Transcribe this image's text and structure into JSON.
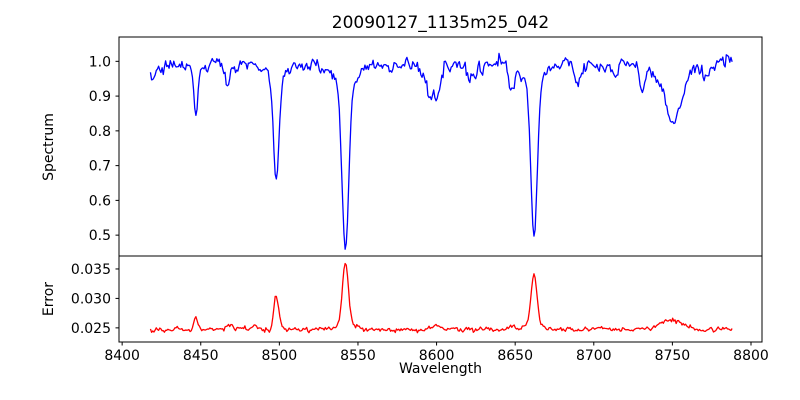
{
  "figure": {
    "title": "20090127_1135m25_042",
    "xlabel": "Wavelength",
    "background_color": "#ffffff",
    "axes_color": "#000000"
  },
  "chart_data": [
    {
      "type": "line",
      "name": "spectrum",
      "ylabel": "Spectrum",
      "color": "#0000ff",
      "legend": "none",
      "grid": false,
      "xlim": [
        8398,
        8807
      ],
      "ylim": [
        0.44,
        1.07
      ],
      "xticks": [
        8400,
        8450,
        8500,
        8550,
        8600,
        8650,
        8700,
        8750,
        8800
      ],
      "xtick_labels": [
        "8400",
        "8450",
        "8500",
        "8550",
        "8600",
        "8650",
        "8700",
        "8750",
        "8800"
      ],
      "xticks_visible": false,
      "yticks": [
        0.5,
        0.6,
        0.7,
        0.8,
        0.9,
        1.0
      ],
      "ytick_labels": [
        "0.5",
        "0.6",
        "0.7",
        "0.8",
        "0.9",
        "1.0"
      ],
      "x_range": [
        8418,
        8788
      ],
      "n_points": 500,
      "continuum": 0.99,
      "noise": {
        "amplitude": 0.0095,
        "smoothing": 0.5,
        "seed": 13
      },
      "absorption_lines": [
        {
          "center": 8418,
          "depth": 0.03,
          "sigma": 6.0
        },
        {
          "center": 8447,
          "depth": 0.145,
          "sigma": 1.2
        },
        {
          "center": 8467,
          "depth": 0.06,
          "sigma": 1.4
        },
        {
          "center": 8498,
          "depth": 0.29,
          "sigma": 1.7
        },
        {
          "center": 8498,
          "depth": 0.05,
          "sigma": 5.0
        },
        {
          "center": 8542,
          "depth": 0.47,
          "sigma": 2.1
        },
        {
          "center": 8542,
          "depth": 0.055,
          "sigma": 7.0
        },
        {
          "center": 8598,
          "depth": 0.095,
          "sigma": 3.5
        },
        {
          "center": 8622,
          "depth": 0.04,
          "sigma": 3.0
        },
        {
          "center": 8648,
          "depth": 0.075,
          "sigma": 1.8
        },
        {
          "center": 8662,
          "depth": 0.44,
          "sigma": 2.0
        },
        {
          "center": 8662,
          "depth": 0.05,
          "sigma": 6.0
        },
        {
          "center": 8690,
          "depth": 0.045,
          "sigma": 2.0
        },
        {
          "center": 8713,
          "depth": 0.035,
          "sigma": 2.0
        },
        {
          "center": 8731,
          "depth": 0.075,
          "sigma": 1.5
        },
        {
          "center": 8750,
          "depth": 0.16,
          "sigma": 6.0
        },
        {
          "center": 8772,
          "depth": 0.035,
          "sigma": 2.0
        }
      ]
    },
    {
      "type": "line",
      "name": "error",
      "ylabel": "Error",
      "color": "#ff0000",
      "legend": "none",
      "grid": false,
      "xlim": [
        8398,
        8807
      ],
      "ylim": [
        0.0226,
        0.0372
      ],
      "xticks": [
        8400,
        8450,
        8500,
        8550,
        8600,
        8650,
        8700,
        8750,
        8800
      ],
      "xtick_labels": [
        "8400",
        "8450",
        "8500",
        "8550",
        "8600",
        "8650",
        "8700",
        "8750",
        "8800"
      ],
      "xticks_visible": true,
      "yticks": [
        0.025,
        0.03,
        0.035
      ],
      "ytick_labels": [
        "0.025",
        "0.030",
        "0.035"
      ],
      "x_range": [
        8418,
        8788
      ],
      "n_points": 500,
      "baseline": 0.0247,
      "noise": {
        "amplitude": 0.0002,
        "smoothing": 0.4,
        "seed": 7
      },
      "emission_peaks": [
        {
          "center": 8447,
          "height": 0.0019,
          "sigma": 1.4
        },
        {
          "center": 8468,
          "height": 0.0006,
          "sigma": 2.0
        },
        {
          "center": 8485,
          "height": 0.0005,
          "sigma": 2.0
        },
        {
          "center": 8498,
          "height": 0.0058,
          "sigma": 1.6
        },
        {
          "center": 8542,
          "height": 0.01,
          "sigma": 1.9
        },
        {
          "center": 8542,
          "height": 0.001,
          "sigma": 6.0
        },
        {
          "center": 8600,
          "height": 0.0007,
          "sigma": 3.0
        },
        {
          "center": 8648,
          "height": 0.0007,
          "sigma": 2.0
        },
        {
          "center": 8662,
          "height": 0.0082,
          "sigma": 1.8
        },
        {
          "center": 8662,
          "height": 0.0008,
          "sigma": 5.0
        },
        {
          "center": 8700,
          "height": 0.0005,
          "sigma": 3.0
        },
        {
          "center": 8750,
          "height": 0.0015,
          "sigma": 7.0
        }
      ]
    }
  ]
}
